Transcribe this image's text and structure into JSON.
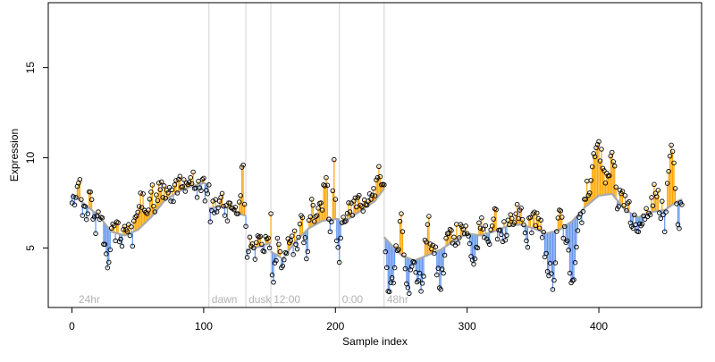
{
  "chart_data": {
    "type": "scatter",
    "title": "",
    "xlabel": "Sample index",
    "ylabel": "Expression",
    "xlim": [
      -18,
      478
    ],
    "ylim": [
      1.7,
      18.6
    ],
    "x_ticks": [
      0,
      100,
      200,
      300,
      400
    ],
    "y_ticks": [
      5,
      10,
      15
    ],
    "grid": false,
    "colors": {
      "points_stroke": "#000000",
      "fit_line": "#a9a9a9",
      "residual_above": "#ffa500",
      "residual_below": "#6495ed",
      "annotation_text": "#b3b3b3",
      "annotation_line": "#d3d3d3",
      "axis": "#000000"
    },
    "annotations": [
      {
        "x": 3,
        "label": "24hr",
        "line": false
      },
      {
        "x": 104,
        "label": "dawn",
        "line": true
      },
      {
        "x": 132,
        "label": "dusk",
        "line": true
      },
      {
        "x": 151,
        "label": "12:00",
        "line": true
      },
      {
        "x": 203,
        "label": "0:00",
        "line": true
      },
      {
        "x": 237,
        "label": "48hr",
        "line": true
      }
    ],
    "n_points": 462,
    "observed_segments": [
      {
        "x": [
          0,
          3,
          5,
          8,
          10,
          12,
          14,
          16,
          18,
          20,
          22,
          25,
          27,
          30,
          33,
          35,
          38,
          40,
          43,
          46,
          48,
          51,
          54,
          57,
          60,
          63,
          66,
          69,
          72,
          75,
          78,
          81,
          84,
          87,
          90,
          93,
          96,
          99,
          102,
          104
        ],
        "y": [
          7.5,
          7.8,
          8.6,
          6.8,
          7.3,
          6.9,
          8.1,
          6.6,
          5.8,
          7.0,
          6.7,
          5.2,
          3.9,
          6.1,
          5.4,
          6.4,
          5.1,
          6.2,
          6.3,
          5.1,
          6.7,
          7.3,
          8.0,
          6.9,
          8.1,
          7.0,
          8.6,
          7.8,
          8.2,
          7.6,
          8.5,
          8.8,
          8.4,
          8.6,
          8.9,
          8.3,
          8.7,
          8.8,
          8.2,
          8.5
        ]
      },
      {
        "x": [
          104,
          107,
          110,
          113,
          116,
          119,
          122,
          125,
          128,
          130,
          132
        ],
        "y": [
          6.4,
          7.6,
          7.0,
          7.8,
          6.8,
          7.5,
          7.2,
          6.9,
          7.9,
          9.6,
          6.2
        ]
      },
      {
        "x": [
          132,
          134,
          136,
          138,
          140,
          142,
          144,
          146,
          148,
          150,
          151
        ],
        "y": [
          4.1,
          4.8,
          5.1,
          5.0,
          5.3,
          5.6,
          5.2,
          4.8,
          5.5,
          5.0,
          6.9
        ]
      },
      {
        "x": [
          151,
          153,
          155,
          157,
          160,
          163,
          166,
          170,
          174,
          178,
          182,
          186,
          190,
          193,
          196,
          199,
          201,
          203
        ],
        "y": [
          4.6,
          3.1,
          4.3,
          5.2,
          4.0,
          4.7,
          5.4,
          5.2,
          6.8,
          4.4,
          7.7,
          6.8,
          7.1,
          8.9,
          5.9,
          9.9,
          5.4,
          4.2
        ]
      },
      {
        "x": [
          203,
          205,
          208,
          211,
          214,
          217,
          220,
          223,
          226,
          229,
          232,
          235,
          237
        ],
        "y": [
          4.1,
          6.4,
          6.5,
          7.0,
          7.6,
          7.8,
          7.3,
          7.4,
          8.0,
          8.3,
          8.9,
          8.5,
          8.5
        ]
      },
      {
        "x": [
          237,
          240,
          245,
          250,
          255,
          260,
          265,
          270,
          275,
          280,
          285,
          290,
          295,
          300,
          305,
          310,
          315,
          320,
          325,
          330,
          335,
          340,
          345,
          350,
          355,
          360,
          365,
          370,
          375,
          380,
          385,
          390,
          395,
          400,
          405,
          410,
          415,
          420,
          425,
          430,
          435,
          440,
          445,
          450,
          455,
          460,
          463
        ],
        "y": [
          5.1,
          2.6,
          3.9,
          6.9,
          2.8,
          4.2,
          2.6,
          6.3,
          4.7,
          2.7,
          5.8,
          5.6,
          6.3,
          5.8,
          4.1,
          6.1,
          5.5,
          6.6,
          6.0,
          5.7,
          6.3,
          7.1,
          5.4,
          6.9,
          6.1,
          4.7,
          2.7,
          7.1,
          5.3,
          3.2,
          6.7,
          7.7,
          9.5,
          10.9,
          8.6,
          10.3,
          7.3,
          7.9,
          6.2,
          5.9,
          6.6,
          7.8,
          8.2,
          5.9,
          10.7,
          6.3,
          7.4
        ]
      }
    ],
    "fitted_segments": [
      {
        "x": [
          0,
          10,
          20,
          30,
          40,
          50,
          60,
          70,
          80,
          90,
          100,
          104
        ],
        "y": [
          8.0,
          7.4,
          6.8,
          5.9,
          5.7,
          6.0,
          6.7,
          7.6,
          8.1,
          8.4,
          8.6,
          8.5
        ]
      },
      {
        "x": [
          104,
          112,
          120,
          126,
          132
        ],
        "y": [
          7.2,
          7.3,
          7.2,
          6.9,
          6.8
        ]
      },
      {
        "x": [
          132,
          138,
          144,
          151
        ],
        "y": [
          4.9,
          5.0,
          5.1,
          5.3
        ]
      },
      {
        "x": [
          151,
          160,
          170,
          180,
          190,
          200,
          203
        ],
        "y": [
          4.8,
          4.4,
          5.4,
          6.1,
          6.5,
          6.6,
          6.6
        ]
      },
      {
        "x": [
          203,
          210,
          220,
          230,
          237
        ],
        "y": [
          6.3,
          6.6,
          7.1,
          7.6,
          8.3
        ]
      },
      {
        "x": [
          237,
          250,
          260,
          270,
          280,
          290,
          300,
          310,
          320,
          330,
          340,
          350,
          360,
          370,
          380,
          390,
          400,
          410,
          420,
          430,
          440,
          450,
          460,
          463
        ],
        "y": [
          5.6,
          4.6,
          4.3,
          4.6,
          4.9,
          5.4,
          5.8,
          5.7,
          5.9,
          6.2,
          6.3,
          6.1,
          5.8,
          6.0,
          6.5,
          7.3,
          7.9,
          8.0,
          7.1,
          6.7,
          7.0,
          7.1,
          7.6,
          7.7
        ]
      }
    ]
  }
}
